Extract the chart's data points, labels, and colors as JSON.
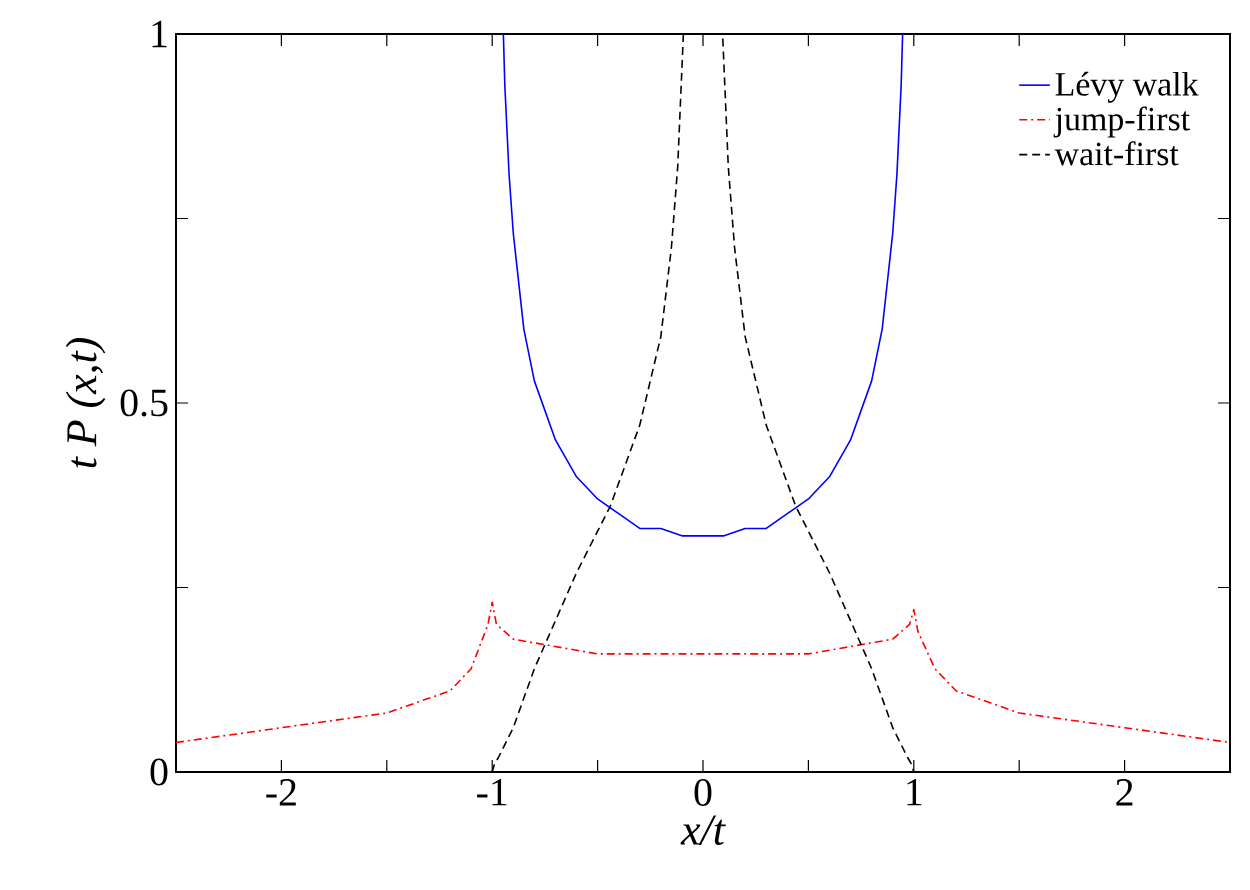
{
  "chart_data": {
    "type": "line",
    "xlabel": "x/t",
    "ylabel": "t P (x,t)",
    "xlim": [
      -2.5,
      2.5
    ],
    "ylim": [
      0,
      1
    ],
    "xticks": [
      -2,
      {
        "value": -1.5,
        "label": null
      },
      -1,
      {
        "value": -0.5,
        "label": null
      },
      0,
      {
        "value": 0.5,
        "label": null
      },
      1,
      {
        "value": 1.5,
        "label": null
      },
      2
    ],
    "yticks": [
      0,
      {
        "value": 0.25,
        "label": null
      },
      0.5,
      {
        "value": 0.75,
        "label": null
      },
      1
    ],
    "grid": false,
    "legend": "top right",
    "marker": "none",
    "series": [
      {
        "name": "Lévy walk",
        "color": "#0000ff",
        "line_style": "solid",
        "x": [
          -0.947,
          -0.94,
          -0.92,
          -0.9,
          -0.85,
          -0.8,
          -0.7,
          -0.6,
          -0.5,
          -0.4,
          -0.3,
          -0.2,
          -0.1,
          0,
          0.1,
          0.2,
          0.3,
          0.4,
          0.5,
          0.6,
          0.7,
          0.8,
          0.85,
          0.9,
          0.92,
          0.94,
          0.947
        ],
        "values": [
          1.0,
          0.93,
          0.81,
          0.73,
          0.6,
          0.53,
          0.45,
          0.4,
          0.37,
          0.35,
          0.33,
          0.33,
          0.32,
          0.32,
          0.32,
          0.33,
          0.33,
          0.35,
          0.37,
          0.4,
          0.45,
          0.53,
          0.6,
          0.73,
          0.81,
          0.93,
          1.0
        ]
      },
      {
        "name": "jump-first",
        "color": "#ff0000",
        "line_style": "dashdot",
        "x": [
          -2.5,
          -2,
          -1.5,
          -1.2,
          -1.1,
          -1.02,
          -1,
          -0.98,
          -0.9,
          -0.5,
          0,
          0.5,
          0.9,
          0.98,
          1,
          1.02,
          1.1,
          1.2,
          1.5,
          2,
          2.5
        ],
        "values": [
          0.04,
          0.06,
          0.08,
          0.11,
          0.14,
          0.2,
          0.23,
          0.2,
          0.18,
          0.16,
          0.16,
          0.16,
          0.18,
          0.2,
          0.22,
          0.19,
          0.14,
          0.11,
          0.08,
          0.06,
          0.04
        ]
      },
      {
        "name": "wait-first",
        "color": "#000000",
        "line_style": "dashed",
        "x": [
          -1,
          -0.99,
          -0.97,
          -0.9,
          -0.8,
          -0.6,
          -0.44,
          -0.3,
          -0.2,
          -0.15,
          -0.12,
          -0.093,
          0.093,
          0.12,
          0.15,
          0.2,
          0.3,
          0.44,
          0.6,
          0.8,
          0.9,
          0.97,
          0.99,
          1
        ],
        "values": [
          0,
          0.01,
          0.02,
          0.06,
          0.14,
          0.27,
          0.36,
          0.47,
          0.59,
          0.71,
          0.82,
          1.0,
          1.0,
          0.82,
          0.71,
          0.59,
          0.47,
          0.36,
          0.27,
          0.14,
          0.06,
          0.02,
          0.01,
          0
        ]
      }
    ]
  }
}
